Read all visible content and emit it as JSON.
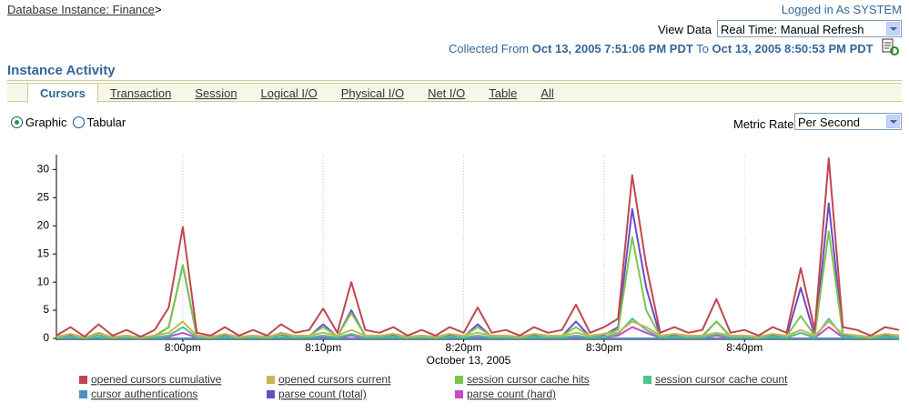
{
  "header": {
    "breadcrumb": "Database Instance: Finance",
    "breadcrumb_separator": ">",
    "login": "Logged in As SYSTEM",
    "view_data_label": "View Data",
    "view_data_value": "Real Time: Manual Refresh",
    "collected_from_label": "Collected From",
    "collected_from": "Oct 13, 2005 7:51:06 PM PDT",
    "to_label": "To",
    "collected_to": "Oct 13, 2005 8:50:53 PM PDT"
  },
  "section_title": "Instance Activity",
  "tabs": [
    {
      "label": "Cursors",
      "selected": true
    },
    {
      "label": "Transaction",
      "selected": false
    },
    {
      "label": "Session",
      "selected": false
    },
    {
      "label": "Logical I/O",
      "selected": false
    },
    {
      "label": "Physical I/O",
      "selected": false
    },
    {
      "label": "Net I/O",
      "selected": false
    },
    {
      "label": "Table",
      "selected": false
    },
    {
      "label": "All",
      "selected": false
    }
  ],
  "radios": [
    {
      "label": "Graphic",
      "checked": true
    },
    {
      "label": "Tabular",
      "checked": false
    }
  ],
  "metric_rate_label": "Metric Rate",
  "metric_rate_value": "Per Second",
  "chart_data": {
    "type": "line",
    "x_label": "October 13, 2005",
    "categories": [
      null,
      null,
      null,
      null,
      null,
      null,
      null,
      null,
      null,
      "8:00pm",
      null,
      null,
      null,
      null,
      null,
      null,
      null,
      null,
      null,
      "8:10pm",
      null,
      null,
      null,
      null,
      null,
      null,
      null,
      null,
      null,
      "8:20pm",
      null,
      null,
      null,
      null,
      null,
      null,
      null,
      null,
      null,
      "8:30pm",
      null,
      null,
      null,
      null,
      null,
      null,
      null,
      null,
      null,
      "8:40pm",
      null,
      null,
      null,
      null,
      null,
      null,
      null,
      null,
      null,
      null,
      null
    ],
    "ylim": [
      0,
      32
    ],
    "yticks": [
      0,
      5,
      10,
      15,
      20,
      25,
      30
    ],
    "grid": true,
    "series": [
      {
        "name": "opened cursors cumulative",
        "color": "#c0464f",
        "values": [
          0.5,
          2,
          0.3,
          2.5,
          0.5,
          1.5,
          0.3,
          1.5,
          5.5,
          19.8,
          1,
          0.5,
          2,
          0.5,
          1.5,
          0.5,
          2.5,
          1,
          1.5,
          5.3,
          1,
          10,
          1.5,
          1,
          2,
          0.5,
          1.5,
          0.5,
          2,
          1,
          5.5,
          1,
          1.5,
          0.5,
          2,
          1,
          1.5,
          6,
          1,
          2,
          3.5,
          29,
          13,
          1,
          2,
          1,
          1.5,
          7,
          1,
          1.5,
          0.5,
          2,
          1,
          12.5,
          1.5,
          32,
          2,
          1.5,
          0.5,
          2,
          1.5
        ]
      },
      {
        "name": "opened cursors current",
        "color": "#c8b455",
        "values": [
          0.3,
          0.8,
          0.2,
          0.8,
          0.3,
          0.5,
          0.2,
          0.5,
          1,
          3,
          0.5,
          0.3,
          0.8,
          0.3,
          0.5,
          0.3,
          0.8,
          0.5,
          0.5,
          1,
          0.5,
          1.5,
          0.5,
          0.5,
          0.8,
          0.3,
          0.5,
          0.3,
          0.8,
          0.5,
          1,
          0.5,
          0.5,
          0.3,
          0.8,
          0.5,
          0.5,
          1,
          0.5,
          0.8,
          1,
          3,
          2,
          0.5,
          0.8,
          0.5,
          0.5,
          1,
          0.5,
          0.5,
          0.3,
          0.8,
          0.5,
          1.5,
          0.5,
          3,
          0.8,
          0.5,
          0.3,
          0.8,
          0.5
        ]
      },
      {
        "name": "session cursor cache hits",
        "color": "#7cc64c",
        "values": [
          0.2,
          0.8,
          0.1,
          1,
          0.2,
          0.5,
          0.1,
          0.5,
          2,
          13,
          0.5,
          0.2,
          0.8,
          0.2,
          0.5,
          0.2,
          1,
          0.4,
          0.5,
          2,
          0.4,
          4.5,
          0.5,
          0.4,
          0.8,
          0.2,
          0.5,
          0.2,
          0.8,
          0.4,
          2,
          0.4,
          0.5,
          0.2,
          0.8,
          0.4,
          0.5,
          2,
          0.4,
          0.8,
          1.5,
          18,
          5,
          0.4,
          0.8,
          0.4,
          0.5,
          3,
          0.4,
          0.5,
          0.2,
          0.8,
          0.4,
          4,
          0.5,
          19,
          0.8,
          0.5,
          0.2,
          0.8,
          0.5
        ]
      },
      {
        "name": "session cursor cache count",
        "color": "#4cc68e",
        "values": [
          0.1,
          0.3,
          0.1,
          0.3,
          0.1,
          0.2,
          0.1,
          0.2,
          0.5,
          2,
          0.2,
          0.1,
          0.3,
          0.1,
          0.2,
          0.1,
          0.3,
          0.2,
          0.2,
          0.5,
          0.2,
          0.8,
          0.2,
          0.2,
          0.3,
          0.1,
          0.2,
          0.1,
          0.3,
          0.2,
          0.5,
          0.2,
          0.2,
          0.1,
          0.3,
          0.2,
          0.2,
          0.5,
          0.2,
          0.3,
          0.8,
          3.5,
          1.5,
          0.2,
          0.3,
          0.2,
          0.2,
          0.8,
          0.2,
          0.2,
          0.1,
          0.3,
          0.2,
          1,
          0.2,
          3.5,
          0.3,
          0.2,
          0.1,
          0.3,
          0.2
        ]
      },
      {
        "name": "cursor authentications",
        "color": "#4c8ec6",
        "values": [
          0,
          0,
          0,
          0,
          0,
          0,
          0,
          0,
          0,
          0,
          0,
          0,
          0,
          0,
          0,
          0,
          0,
          0,
          0,
          0,
          0,
          0,
          0,
          0,
          0,
          0,
          0,
          0,
          0,
          0,
          0,
          0,
          0,
          0,
          0,
          0,
          0,
          0,
          0,
          0,
          0,
          0,
          0,
          0,
          0,
          0,
          0,
          0,
          0,
          0,
          0,
          0,
          0,
          0,
          0,
          0,
          0,
          0,
          0,
          0,
          0
        ]
      },
      {
        "name": "parse count (total)",
        "color": "#6a4cc6",
        "values": [
          0.2,
          0.6,
          0.1,
          0.7,
          0.2,
          0.4,
          0.1,
          0.4,
          2,
          13,
          0.3,
          0.2,
          0.6,
          0.2,
          0.4,
          0.2,
          0.7,
          0.3,
          0.4,
          2.5,
          0.3,
          5,
          0.4,
          0.3,
          0.6,
          0.2,
          0.4,
          0.2,
          0.6,
          0.3,
          2.5,
          0.3,
          0.4,
          0.2,
          0.6,
          0.3,
          0.4,
          3,
          0.3,
          0.6,
          2,
          23,
          9,
          0.3,
          0.6,
          0.3,
          0.4,
          3,
          0.3,
          0.4,
          0.2,
          0.6,
          0.3,
          9,
          0.4,
          24,
          0.6,
          0.4,
          0.2,
          0.6,
          0.4
        ]
      },
      {
        "name": "parse count (hard)",
        "color": "#c64cc6",
        "values": [
          0.1,
          0.2,
          0,
          0.2,
          0.1,
          0.1,
          0,
          0.1,
          0.3,
          1,
          0.1,
          0.1,
          0.2,
          0.1,
          0.1,
          0.1,
          0.2,
          0.1,
          0.1,
          0.3,
          0.1,
          0.5,
          0.1,
          0.1,
          0.2,
          0.1,
          0.1,
          0.1,
          0.2,
          0.1,
          0.3,
          0.1,
          0.1,
          0.1,
          0.2,
          0.1,
          0.1,
          0.3,
          0.1,
          0.2,
          0.5,
          2,
          1,
          0.1,
          0.2,
          0.1,
          0.1,
          0.5,
          0.1,
          0.1,
          0.1,
          0.2,
          0.1,
          1,
          0.1,
          2,
          0.2,
          0.1,
          0.1,
          0.2,
          0.1
        ]
      }
    ]
  }
}
